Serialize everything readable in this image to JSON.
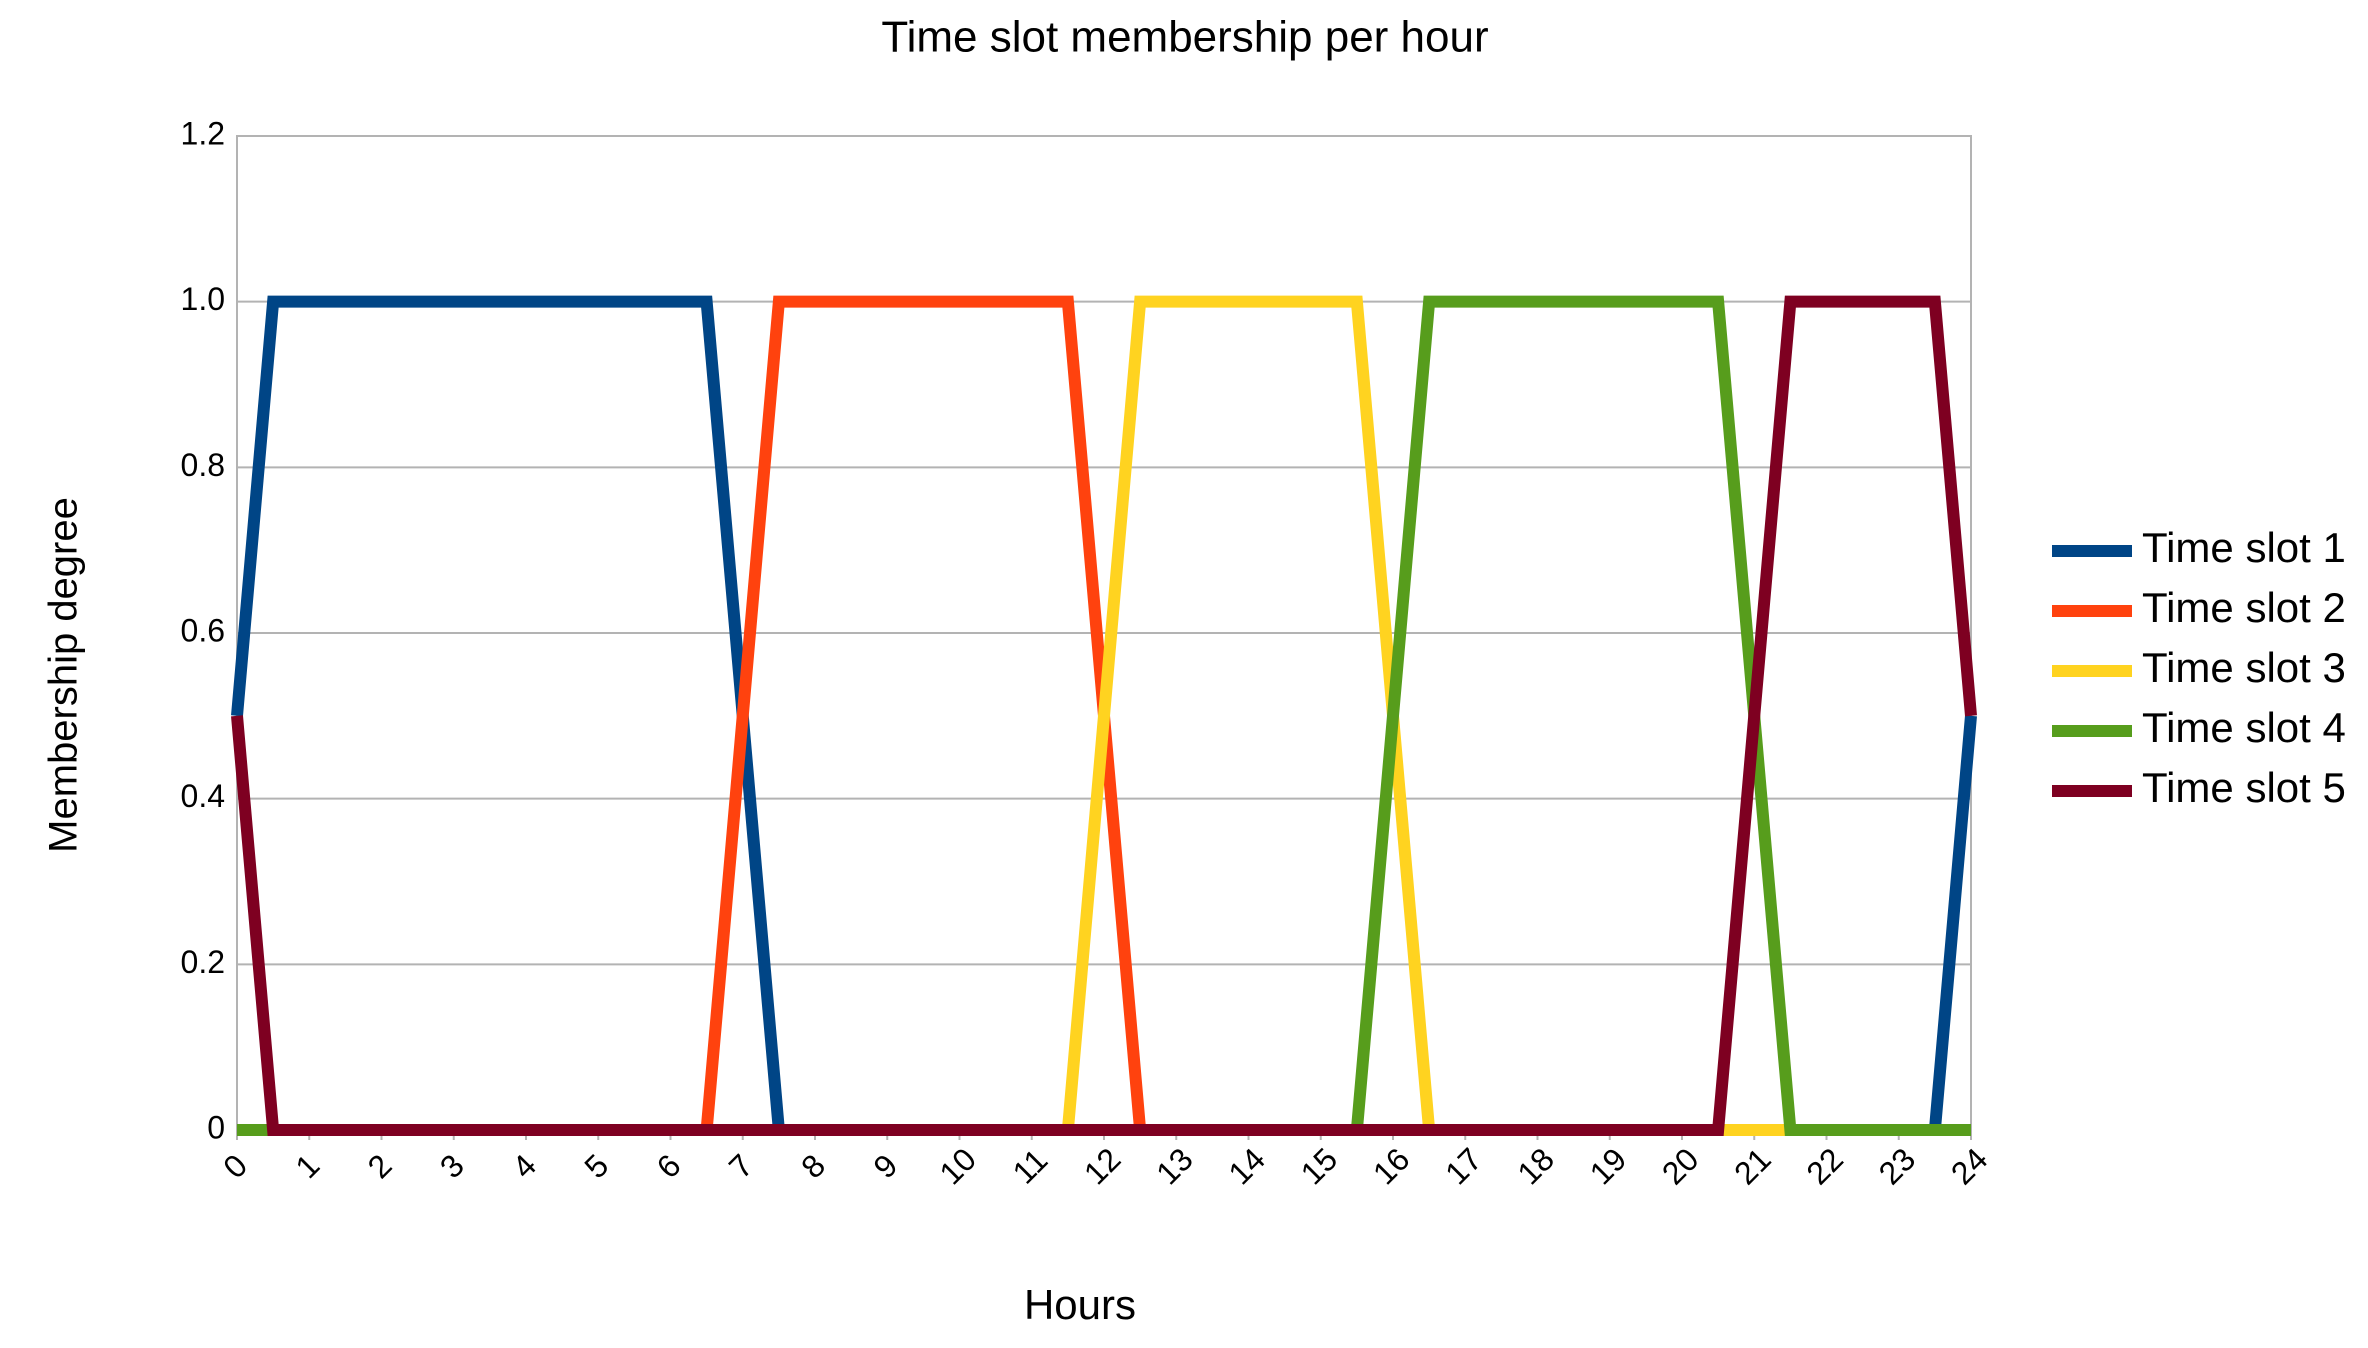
{
  "chart_data": {
    "type": "line",
    "title": "Time slot membership per hour",
    "x_label": "Hours",
    "y_label": "Membership degree",
    "x": [
      0,
      0.5,
      6.5,
      7.5,
      11.5,
      12.5,
      15.5,
      16.5,
      20.5,
      21.5,
      23.5,
      24
    ],
    "series": [
      {
        "name": "Time slot 1",
        "color": "#004586",
        "values": [
          0.5,
          1,
          1,
          0,
          0,
          0,
          0,
          0,
          0,
          0,
          0,
          0.5
        ]
      },
      {
        "name": "Time slot 2",
        "color": "#ff420e",
        "values": [
          0,
          0,
          0,
          1,
          1,
          0,
          0,
          0,
          0,
          0,
          0,
          0
        ]
      },
      {
        "name": "Time slot 3",
        "color": "#ffd320",
        "values": [
          0,
          0,
          0,
          0,
          0,
          1,
          1,
          0,
          0,
          0,
          0,
          0
        ]
      },
      {
        "name": "Time slot 4",
        "color": "#579d1c",
        "values": [
          0,
          0,
          0,
          0,
          0,
          0,
          0,
          1,
          1,
          0,
          0,
          0
        ]
      },
      {
        "name": "Time slot 5",
        "color": "#7e0021",
        "values": [
          0.5,
          0,
          0,
          0,
          0,
          0,
          0,
          0,
          0,
          1,
          1,
          0.5
        ]
      }
    ],
    "xlim": [
      0,
      24
    ],
    "xticks": [
      0,
      1,
      2,
      3,
      4,
      5,
      6,
      7,
      8,
      9,
      10,
      11,
      12,
      13,
      14,
      15,
      16,
      17,
      18,
      19,
      20,
      21,
      22,
      23,
      24
    ],
    "ylim": [
      0,
      1.2
    ],
    "yticks": [
      0,
      0.2,
      0.4,
      0.6,
      0.8,
      {
        "value": 1,
        "label": "1.0"
      },
      1.2
    ],
    "grid": true,
    "legend": "right"
  }
}
